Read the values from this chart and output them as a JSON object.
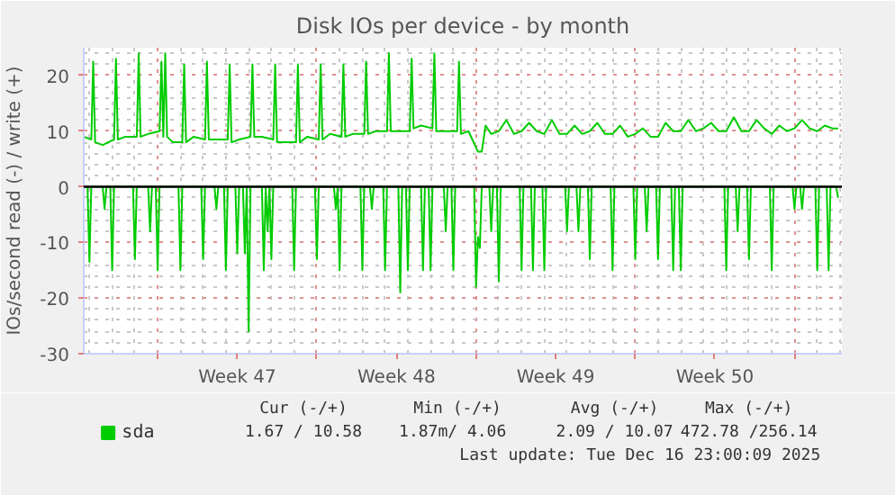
{
  "chart_data": {
    "type": "line",
    "title": "Disk IOs per device - by month",
    "ylabel": "IOs/second read (-) / write (+)",
    "xlim": [
      "2025-11-13T18:00",
      "2025-12-17T02:00"
    ],
    "ylim": [
      -30,
      25
    ],
    "yticks": [
      -30,
      -20,
      -10,
      0,
      10,
      20
    ],
    "xticks": [
      {
        "value": "2025-11-17T00:00",
        "label": null
      },
      {
        "value": "2025-11-20T12:00",
        "label": "Week 47"
      },
      {
        "value": "2025-11-24T00:00",
        "label": null
      },
      {
        "value": "2025-11-27T12:00",
        "label": "Week 48"
      },
      {
        "value": "2025-12-01T00:00",
        "label": null
      },
      {
        "value": "2025-12-04T12:00",
        "label": "Week 49"
      },
      {
        "value": "2025-12-08T00:00",
        "label": null
      },
      {
        "value": "2025-12-11T12:00",
        "label": "Week 50"
      },
      {
        "value": "2025-12-15T00:00",
        "label": null
      }
    ],
    "grid": true,
    "legend": "bottom",
    "line_style": "solid",
    "ref_lines": [
      {
        "axis": "y",
        "value": 0,
        "label": null,
        "color": "#000000"
      }
    ],
    "series": [
      {
        "name": "sda",
        "color": "#00cc00",
        "x": [
          "2025-11-13T18:00",
          "2025-11-14T02:00",
          "2025-11-14T04:00",
          "2025-11-14T06:00",
          "2025-11-14T14:00",
          "2025-11-15T02:00",
          "2025-11-15T04:00",
          "2025-11-15T06:00",
          "2025-11-15T14:00",
          "2025-11-16T02:00",
          "2025-11-16T04:00",
          "2025-11-16T06:00",
          "2025-11-16T14:00",
          "2025-11-17T02:00",
          "2025-11-17T04:00",
          "2025-11-17T06:00",
          "2025-11-17T08:00",
          "2025-11-17T10:00",
          "2025-11-17T16:00",
          "2025-11-18T02:00",
          "2025-11-18T04:00",
          "2025-11-18T06:00",
          "2025-11-18T14:00",
          "2025-11-19T02:00",
          "2025-11-19T04:00",
          "2025-11-19T06:00",
          "2025-11-19T14:00",
          "2025-11-20T02:00",
          "2025-11-20T04:00",
          "2025-11-20T06:00",
          "2025-11-20T14:00",
          "2025-11-21T02:00",
          "2025-11-21T04:00",
          "2025-11-21T06:00",
          "2025-11-21T14:00",
          "2025-11-22T02:00",
          "2025-11-22T04:00",
          "2025-11-22T06:00",
          "2025-11-22T14:00",
          "2025-11-23T02:00",
          "2025-11-23T04:00",
          "2025-11-23T06:00",
          "2025-11-23T14:00",
          "2025-11-24T02:00",
          "2025-11-24T04:00",
          "2025-11-24T06:00",
          "2025-11-24T14:00",
          "2025-11-25T02:00",
          "2025-11-25T04:00",
          "2025-11-25T06:00",
          "2025-11-25T14:00",
          "2025-11-26T02:00",
          "2025-11-26T04:00",
          "2025-11-26T06:00",
          "2025-11-26T14:00",
          "2025-11-27T02:00",
          "2025-11-27T04:00",
          "2025-11-27T06:00",
          "2025-11-27T14:00",
          "2025-11-28T02:00",
          "2025-11-28T04:00",
          "2025-11-28T06:00",
          "2025-11-28T14:00",
          "2025-11-29T02:00",
          "2025-11-29T04:00",
          "2025-11-29T06:00",
          "2025-11-29T14:00",
          "2025-11-30T04:00",
          "2025-11-30T06:00",
          "2025-11-30T08:00",
          "2025-11-30T16:00",
          "2025-12-01T02:00",
          "2025-12-01T06:00",
          "2025-12-01T10:00",
          "2025-12-01T16:00",
          "2025-12-02T00:00",
          "2025-12-02T08:00",
          "2025-12-02T16:00",
          "2025-12-03T00:00",
          "2025-12-03T08:00",
          "2025-12-03T16:00",
          "2025-12-04T00:00",
          "2025-12-04T08:00",
          "2025-12-04T16:00",
          "2025-12-05T00:00",
          "2025-12-05T08:00",
          "2025-12-05T16:00",
          "2025-12-06T00:00",
          "2025-12-06T08:00",
          "2025-12-06T16:00",
          "2025-12-07T00:00",
          "2025-12-07T08:00",
          "2025-12-07T16:00",
          "2025-12-08T00:00",
          "2025-12-08T08:00",
          "2025-12-08T16:00",
          "2025-12-09T00:00",
          "2025-12-09T08:00",
          "2025-12-09T16:00",
          "2025-12-10T00:00",
          "2025-12-10T08:00",
          "2025-12-10T16:00",
          "2025-12-11T00:00",
          "2025-12-11T08:00",
          "2025-12-11T16:00",
          "2025-12-12T00:00",
          "2025-12-12T08:00",
          "2025-12-12T16:00",
          "2025-12-13T00:00",
          "2025-12-13T08:00",
          "2025-12-13T16:00",
          "2025-12-14T00:00",
          "2025-12-14T08:00",
          "2025-12-14T16:00",
          "2025-12-15T00:00",
          "2025-12-15T08:00",
          "2025-12-15T16:00",
          "2025-12-16T00:00",
          "2025-12-16T08:00",
          "2025-12-16T16:00",
          "2025-12-16T22:00"
        ],
        "values": [
          9,
          8.5,
          22.5,
          8,
          7.5,
          8.5,
          23,
          8.5,
          9,
          9,
          24,
          9,
          9.5,
          10,
          22.5,
          9,
          24,
          9,
          8,
          8,
          22,
          8,
          9,
          8.5,
          22.5,
          8.5,
          8.5,
          8.5,
          22,
          8,
          8.5,
          9,
          22,
          9,
          9,
          8.5,
          22,
          8,
          8,
          8,
          22,
          8,
          9,
          8.5,
          22,
          8.5,
          9.5,
          9,
          22,
          9,
          9.5,
          9.5,
          22.5,
          9.5,
          10,
          10,
          24,
          10,
          10,
          10,
          23,
          10.5,
          11,
          10.5,
          24,
          10,
          10,
          10,
          22.5,
          9.5,
          10,
          6.3,
          6.3,
          11,
          9.5,
          10,
          12,
          9.5,
          10,
          11.5,
          10,
          9.5,
          12,
          9.5,
          9.5,
          11,
          9.5,
          10,
          11.5,
          9.5,
          9.5,
          11,
          9,
          9.5,
          10.5,
          9,
          9,
          11.5,
          10,
          10,
          12,
          10,
          10.5,
          11.5,
          10,
          10,
          12.5,
          10,
          10,
          12,
          10.5,
          9.5,
          11,
          10,
          10.5,
          12,
          10.5,
          10,
          11,
          10.5,
          10.5
        ]
      },
      {
        "color": "#00cc00",
        "x": [
          "2025-11-13T18:00",
          "2025-11-13T22:00",
          "2025-11-14T00:00",
          "2025-11-14T02:00",
          "2025-11-14T14:00",
          "2025-11-14T16:00",
          "2025-11-14T18:00",
          "2025-11-14T22:00",
          "2025-11-15T00:00",
          "2025-11-15T02:00",
          "2025-11-15T22:00",
          "2025-11-16T00:00",
          "2025-11-16T02:00",
          "2025-11-16T14:00",
          "2025-11-16T16:00",
          "2025-11-16T18:00",
          "2025-11-16T22:00",
          "2025-11-17T00:00",
          "2025-11-17T02:00",
          "2025-11-17T22:00",
          "2025-11-18T00:00",
          "2025-11-18T02:00",
          "2025-11-18T22:00",
          "2025-11-19T00:00",
          "2025-11-19T02:00",
          "2025-11-19T12:00",
          "2025-11-19T14:00",
          "2025-11-19T16:00",
          "2025-11-19T22:00",
          "2025-11-20T00:00",
          "2025-11-20T02:00",
          "2025-11-20T10:00",
          "2025-11-20T12:00",
          "2025-11-20T14:00",
          "2025-11-20T18:00",
          "2025-11-20T20:00",
          "2025-11-20T22:00",
          "2025-11-21T00:00",
          "2025-11-21T02:00",
          "2025-11-21T14:00",
          "2025-11-21T16:00",
          "2025-11-21T18:00",
          "2025-11-21T20:00",
          "2025-11-21T22:00",
          "2025-11-22T00:00",
          "2025-11-22T02:00",
          "2025-11-22T22:00",
          "2025-11-23T00:00",
          "2025-11-23T02:00",
          "2025-11-23T22:00",
          "2025-11-24T00:00",
          "2025-11-24T02:00",
          "2025-11-24T18:00",
          "2025-11-24T20:00",
          "2025-11-24T22:00",
          "2025-11-25T00:00",
          "2025-11-25T02:00",
          "2025-11-25T22:00",
          "2025-11-26T00:00",
          "2025-11-26T02:00",
          "2025-11-26T08:00",
          "2025-11-26T10:00",
          "2025-11-26T12:00",
          "2025-11-26T22:00",
          "2025-11-27T00:00",
          "2025-11-27T02:00",
          "2025-11-27T14:00",
          "2025-11-27T16:00",
          "2025-11-27T18:00",
          "2025-11-27T22:00",
          "2025-11-28T00:00",
          "2025-11-28T02:00",
          "2025-11-28T14:00",
          "2025-11-28T16:00",
          "2025-11-28T18:00",
          "2025-11-28T22:00",
          "2025-11-29T00:00",
          "2025-11-29T02:00",
          "2025-11-29T14:00",
          "2025-11-29T16:00",
          "2025-11-29T18:00",
          "2025-11-29T22:00",
          "2025-11-30T00:00",
          "2025-11-30T02:00",
          "2025-11-30T22:00",
          "2025-12-01T00:00",
          "2025-12-01T02:00",
          "2025-12-01T04:00",
          "2025-12-01T06:00",
          "2025-12-01T14:00",
          "2025-12-01T16:00",
          "2025-12-01T18:00",
          "2025-12-01T22:00",
          "2025-12-02T00:00",
          "2025-12-02T02:00",
          "2025-12-02T22:00",
          "2025-12-03T00:00",
          "2025-12-03T02:00",
          "2025-12-03T10:00",
          "2025-12-03T12:00",
          "2025-12-03T14:00",
          "2025-12-03T22:00",
          "2025-12-04T00:00",
          "2025-12-04T02:00",
          "2025-12-04T22:00",
          "2025-12-05T00:00",
          "2025-12-05T02:00",
          "2025-12-05T10:00",
          "2025-12-05T12:00",
          "2025-12-05T14:00",
          "2025-12-05T22:00",
          "2025-12-06T00:00",
          "2025-12-06T02:00",
          "2025-12-06T22:00",
          "2025-12-07T00:00",
          "2025-12-07T02:00",
          "2025-12-07T22:00",
          "2025-12-08T00:00",
          "2025-12-08T02:00",
          "2025-12-08T10:00",
          "2025-12-08T12:00",
          "2025-12-08T14:00",
          "2025-12-08T22:00",
          "2025-12-09T00:00",
          "2025-12-09T02:00",
          "2025-12-09T14:00",
          "2025-12-09T16:00",
          "2025-12-09T18:00",
          "2025-12-09T22:00",
          "2025-12-10T00:00",
          "2025-12-10T02:00",
          "2025-12-11T22:00",
          "2025-12-12T00:00",
          "2025-12-12T02:00",
          "2025-12-12T10:00",
          "2025-12-12T12:00",
          "2025-12-12T14:00",
          "2025-12-12T22:00",
          "2025-12-13T00:00",
          "2025-12-13T02:00",
          "2025-12-13T22:00",
          "2025-12-14T00:00",
          "2025-12-14T02:00",
          "2025-12-14T22:00",
          "2025-12-15T00:00",
          "2025-12-15T02:00",
          "2025-12-15T06:00",
          "2025-12-15T08:00",
          "2025-12-15T10:00",
          "2025-12-15T22:00",
          "2025-12-16T00:00",
          "2025-12-16T02:00",
          "2025-12-16T10:00",
          "2025-12-16T12:00",
          "2025-12-16T14:00",
          "2025-12-16T20:00",
          "2025-12-16T22:00"
        ],
        "values": [
          0,
          0,
          -13.5,
          0,
          0,
          -4,
          0,
          0,
          -15,
          0,
          0,
          -13,
          0,
          0,
          -8,
          0,
          0,
          -15,
          0,
          0,
          -15,
          0,
          0,
          -13,
          0,
          0,
          -4,
          0,
          0,
          -15,
          0,
          0,
          -12,
          0,
          0,
          -12,
          0,
          -26,
          0,
          0,
          -15,
          0,
          -8,
          0,
          -13,
          0,
          0,
          -15,
          0,
          0,
          -13,
          0,
          0,
          -4,
          0,
          -15,
          0,
          0,
          -15,
          0,
          0,
          -4,
          0,
          0,
          -15,
          0,
          0,
          -19,
          0,
          0,
          -15,
          0,
          0,
          -15,
          0,
          0,
          -15,
          0,
          0,
          -8,
          0,
          0,
          -15,
          0,
          0,
          -18,
          -9,
          -11,
          0,
          0,
          -8,
          0,
          0,
          -17,
          0,
          0,
          -15,
          0,
          0,
          -15,
          0,
          0,
          -15,
          0,
          0,
          -8,
          0,
          0,
          -8,
          0,
          0,
          -13,
          0,
          0,
          -15,
          0,
          0,
          -13,
          0,
          0,
          -8,
          0,
          0,
          -13,
          0,
          0,
          -15,
          0,
          0,
          -15,
          0,
          0,
          -15,
          0,
          0,
          -8,
          0,
          0,
          -13,
          0,
          0,
          -15,
          0,
          0,
          -4,
          0,
          0,
          -4,
          0,
          0,
          -15,
          0,
          0,
          -15,
          0,
          0,
          -2
        ]
      }
    ],
    "annotations": [
      "Cur (-/+)",
      "Min (-/+)",
      "Avg (-/+)",
      "Max (-/+)",
      "1.67 / 10.58",
      "1.87m/  4.06",
      "2.09 / 10.07",
      "472.78 /256.14",
      "Last update: Tue Dec 16 23:00:09 2025"
    ]
  }
}
